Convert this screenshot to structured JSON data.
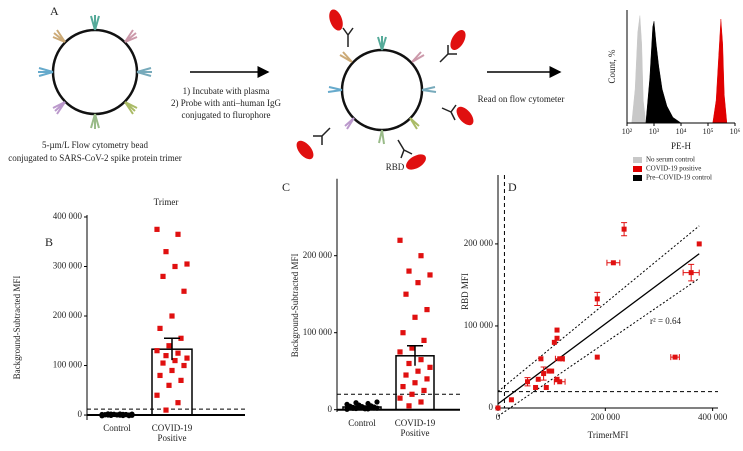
{
  "schematic": {
    "label": "A",
    "bead_caption_1": "5-µm/L Flow cytometry bead",
    "bead_caption_2": "conjugated to SARS-CoV-2 spike protein trimer",
    "step_1": "1) Incubate with plasma",
    "step_2": "2) Probe with anti–human IgG",
    "step_3": "conjugated to flurophore",
    "step_read": "Read on flow cytometer"
  },
  "chart_data": [
    {
      "type": "area",
      "x_label": "PE-H",
      "y_label": "Count, %",
      "log_x": true,
      "xlim": [
        100,
        1000000
      ],
      "ylim": [
        0,
        100
      ],
      "xticks": [
        {
          "value": 100,
          "label": "10²"
        },
        {
          "value": 1000,
          "label": "10³"
        },
        {
          "value": 10000,
          "label": "10⁴"
        },
        {
          "value": 100000,
          "label": "10⁵"
        },
        {
          "value": 1000000,
          "label": "10⁶"
        }
      ],
      "series": [
        {
          "name": "No serum control",
          "color": "#c8c8c8",
          "x": [
            150,
            200,
            250,
            300,
            350,
            400,
            500
          ],
          "values": [
            0,
            30,
            80,
            95,
            70,
            20,
            0
          ]
        },
        {
          "name": "COVID-19 positive",
          "color": "#e00000",
          "x": [
            150000,
            200000,
            250000,
            300000,
            350000,
            400000,
            500000
          ],
          "values": [
            0,
            20,
            60,
            92,
            70,
            25,
            0
          ]
        },
        {
          "name": "Pre–COVID-19 control",
          "color": "#000000",
          "x": [
            500,
            700,
            900,
            1000,
            1200,
            1500,
            2000,
            3000,
            5000,
            10000
          ],
          "values": [
            0,
            40,
            85,
            90,
            70,
            50,
            30,
            15,
            5,
            0
          ]
        }
      ]
    },
    {
      "type": "dot_bar",
      "label": "B",
      "title": "Trimer",
      "y_label": "Background-Subtracted MFI",
      "categories": [
        "Control",
        "COVID-19 Positive"
      ],
      "ylim": [
        -10000,
        404000
      ],
      "yticks": [
        0,
        {
          "value": 100000,
          "label": "100 000"
        },
        {
          "value": 200000,
          "label": "200 000"
        },
        {
          "value": 300000,
          "label": "300 000"
        },
        {
          "value": 400000,
          "label": "400 000"
        }
      ],
      "threshold": 12000,
      "groups": [
        {
          "color": "#000000",
          "marker": "circle",
          "mean": 600,
          "sem": 250,
          "values": [
            -1500,
            -1000,
            -800,
            -500,
            -300,
            0,
            200,
            400,
            600,
            800,
            1000,
            1200,
            1500,
            1800,
            2000,
            2200,
            2500,
            -1200,
            300,
            700,
            1100,
            1600,
            -600,
            900,
            1300
          ]
        },
        {
          "color": "#e01010",
          "marker": "square",
          "mean": 133000,
          "sem": 22000,
          "values": [
            375000,
            365000,
            330000,
            305000,
            300000,
            280000,
            250000,
            200000,
            175000,
            155000,
            140000,
            130000,
            125000,
            120000,
            115000,
            110000,
            105000,
            100000,
            90000,
            80000,
            70000,
            60000,
            40000,
            25000,
            10000
          ]
        }
      ]
    },
    {
      "type": "dot_bar",
      "label": "C",
      "title": "RBD",
      "y_label": "Background-Subtracted MFI",
      "categories": [
        "Control",
        "COVID-19 Positive"
      ],
      "ylim": [
        -3000,
        300000
      ],
      "yticks": [
        0,
        {
          "value": 100000,
          "label": "100 000"
        },
        {
          "value": 200000,
          "label": "200 000"
        }
      ],
      "threshold": 20000,
      "groups": [
        {
          "color": "#000000",
          "marker": "circle",
          "mean": 3500,
          "sem": 500,
          "values": [
            500,
            1000,
            1500,
            2000,
            2500,
            3000,
            3500,
            4000,
            4500,
            5000,
            6000,
            7000,
            8000,
            9000,
            10000,
            1200,
            1800,
            2200,
            2800,
            3200,
            3800,
            4200,
            800,
            1500,
            2600
          ]
        },
        {
          "color": "#e01010",
          "marker": "square",
          "mean": 70000,
          "sem": 13000,
          "values": [
            220000,
            200000,
            180000,
            175000,
            165000,
            150000,
            130000,
            120000,
            100000,
            90000,
            80000,
            75000,
            65000,
            60000,
            55000,
            50000,
            45000,
            40000,
            35000,
            30000,
            25000,
            20000,
            15000,
            10000,
            5000
          ]
        }
      ]
    },
    {
      "type": "scatter",
      "label": "D",
      "x_label": "TrimerMFI",
      "y_label": "RBD MFI",
      "annotation": "r² = 0.64",
      "color": "#e01010",
      "xlim": [
        0,
        410000
      ],
      "ylim": [
        0,
        284000
      ],
      "xticks": [
        0,
        {
          "value": 200000,
          "label": "200 000"
        },
        {
          "value": 400000,
          "label": "400 000"
        }
      ],
      "yticks": [
        0,
        {
          "value": 100000,
          "label": "100 000"
        },
        {
          "value": 200000,
          "label": "200 000"
        }
      ],
      "x_threshold": 12000,
      "y_threshold": 20000,
      "x": [
        375000,
        235000,
        360000,
        215000,
        185000,
        330000,
        185000,
        110000,
        110000,
        105000,
        115000,
        120000,
        95000,
        80000,
        75000,
        55000,
        100000,
        85000,
        115000,
        70000,
        90000,
        25000,
        110000,
        0
      ],
      "values": [
        200000,
        218000,
        165000,
        177000,
        133000,
        62000,
        62000,
        95000,
        85000,
        80000,
        60000,
        60000,
        45000,
        60000,
        35000,
        32000,
        45000,
        42000,
        32000,
        25000,
        25000,
        10000,
        35000,
        0
      ],
      "x_err": [
        null,
        null,
        15000,
        12000,
        null,
        8000,
        null,
        null,
        null,
        null,
        8000,
        null,
        null,
        null,
        null,
        null,
        null,
        null,
        10000,
        null,
        null,
        null,
        null,
        null
      ],
      "y_err": [
        null,
        8000,
        10000,
        null,
        8000,
        null,
        null,
        null,
        null,
        null,
        null,
        null,
        null,
        null,
        null,
        5000,
        null,
        8000,
        null,
        null,
        null,
        null,
        null,
        null
      ],
      "fit_line": {
        "x": [
          0,
          375000
        ],
        "y": [
          5000,
          188000
        ]
      },
      "ci_upper": {
        "x": [
          0,
          375000
        ],
        "y": [
          20000,
          222000
        ]
      },
      "ci_lower": {
        "x": [
          0,
          375000
        ],
        "y": [
          -10000,
          158000
        ]
      }
    }
  ]
}
